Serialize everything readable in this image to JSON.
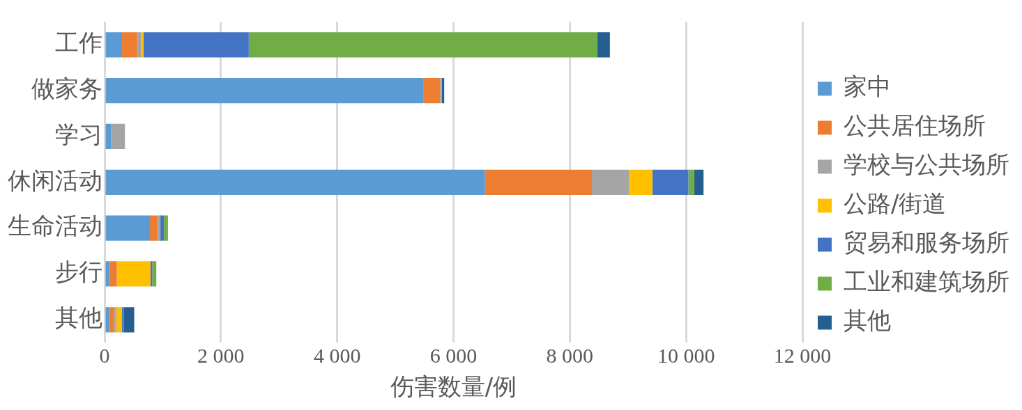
{
  "chart_data": {
    "type": "bar",
    "orientation": "horizontal",
    "stacked": true,
    "xlabel": "伤害数量/例",
    "categories": [
      "工作",
      "做家务",
      "学习",
      "休闲活动",
      "生命活动",
      "步行",
      "其他"
    ],
    "series": [
      {
        "name": "家中",
        "color": "#5b9bd5",
        "values": [
          300,
          5480,
          110,
          6540,
          780,
          90,
          90
        ]
      },
      {
        "name": "公共居住场所",
        "color": "#ed7d31",
        "values": [
          260,
          290,
          0,
          1840,
          120,
          120,
          70
        ]
      },
      {
        "name": "学校与公共场所",
        "color": "#a5a5a5",
        "values": [
          70,
          30,
          240,
          640,
          60,
          0,
          40
        ]
      },
      {
        "name": "公路/街道",
        "color": "#ffc000",
        "values": [
          40,
          0,
          0,
          400,
          0,
          580,
          100
        ]
      },
      {
        "name": "贸易和服务场所",
        "color": "#4472c4",
        "values": [
          1810,
          0,
          0,
          620,
          60,
          30,
          30
        ]
      },
      {
        "name": "工业和建筑场所",
        "color": "#70ad47",
        "values": [
          5990,
          0,
          0,
          100,
          70,
          70,
          0
        ]
      },
      {
        "name": "其他",
        "color": "#255e91",
        "values": [
          220,
          40,
          0,
          160,
          0,
          0,
          180
        ]
      }
    ],
    "xlim": [
      0,
      12000
    ],
    "xticks": [
      0,
      {
        "value": 2000,
        "label": "2 000"
      },
      {
        "value": 4000,
        "label": "4 000"
      },
      {
        "value": 6000,
        "label": "6 000"
      },
      {
        "value": 8000,
        "label": "8 000"
      },
      {
        "value": 10000,
        "label": "10 000"
      },
      {
        "value": 12000,
        "label": "12 000"
      }
    ],
    "grid": "x",
    "legend": "right"
  }
}
